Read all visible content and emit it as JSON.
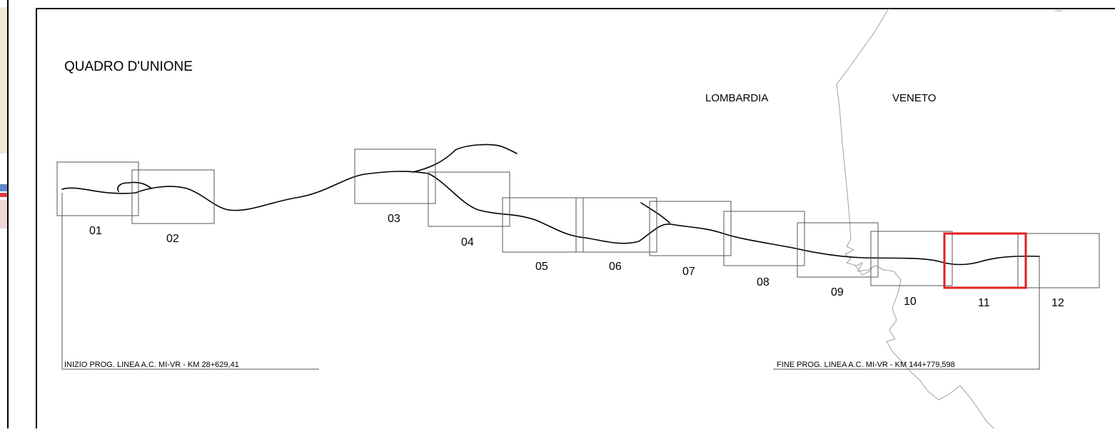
{
  "map": {
    "title": "QUADRO D'UNIONE",
    "regions": [
      "LOMBARDIA",
      "VENETO"
    ],
    "start_note": "INIZIO PROG. LINEA A.C. MI-VR - KM 28+629,41",
    "end_note": "FINE PROG. LINEA A.C. MI-VR - KM 144+779,598",
    "highlight_color": "#e02020",
    "sheets": [
      {
        "label": "01"
      },
      {
        "label": "02"
      },
      {
        "label": "03"
      },
      {
        "label": "04"
      },
      {
        "label": "05"
      },
      {
        "label": "06"
      },
      {
        "label": "07"
      },
      {
        "label": "08"
      },
      {
        "label": "09"
      },
      {
        "label": "10"
      },
      {
        "label": "11",
        "highlighted": true
      },
      {
        "label": "12"
      }
    ]
  }
}
